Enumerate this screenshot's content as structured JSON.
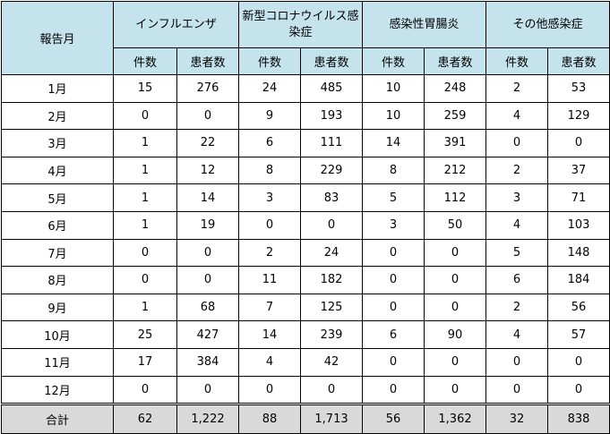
{
  "header": {
    "month_label": "報告月",
    "groups": [
      "インフルエンザ",
      "新型コロナウイルス感染症",
      "感染性胃腸炎",
      "その他感染症"
    ],
    "sub": [
      "件数",
      "患者数"
    ]
  },
  "rows": [
    {
      "month": "1月",
      "v": [
        "15",
        "276",
        "24",
        "485",
        "10",
        "248",
        "2",
        "53"
      ]
    },
    {
      "month": "2月",
      "v": [
        "0",
        "0",
        "9",
        "193",
        "10",
        "259",
        "4",
        "129"
      ]
    },
    {
      "month": "3月",
      "v": [
        "1",
        "22",
        "6",
        "111",
        "14",
        "391",
        "0",
        "0"
      ]
    },
    {
      "month": "4月",
      "v": [
        "1",
        "12",
        "8",
        "229",
        "8",
        "212",
        "2",
        "37"
      ]
    },
    {
      "month": "5月",
      "v": [
        "1",
        "14",
        "3",
        "83",
        "5",
        "112",
        "3",
        "71"
      ]
    },
    {
      "month": "6月",
      "v": [
        "1",
        "19",
        "0",
        "0",
        "3",
        "50",
        "4",
        "103"
      ]
    },
    {
      "month": "7月",
      "v": [
        "0",
        "0",
        "2",
        "24",
        "0",
        "0",
        "5",
        "148"
      ]
    },
    {
      "month": "8月",
      "v": [
        "0",
        "0",
        "11",
        "182",
        "0",
        "0",
        "6",
        "184"
      ]
    },
    {
      "month": "9月",
      "v": [
        "1",
        "68",
        "7",
        "125",
        "0",
        "0",
        "2",
        "56"
      ]
    },
    {
      "month": "10月",
      "v": [
        "25",
        "427",
        "14",
        "239",
        "6",
        "90",
        "4",
        "57"
      ]
    },
    {
      "month": "11月",
      "v": [
        "17",
        "384",
        "4",
        "42",
        "0",
        "0",
        "0",
        "0"
      ]
    },
    {
      "month": "12月",
      "v": [
        "0",
        "0",
        "0",
        "0",
        "0",
        "0",
        "0",
        "0"
      ]
    }
  ],
  "total": {
    "label": "合計",
    "v": [
      "62",
      "1,222",
      "88",
      "1,713",
      "56",
      "1,362",
      "32",
      "838"
    ]
  },
  "colors": {
    "header_bg": "#c5e3ec",
    "total_bg": "#d9d9d9"
  }
}
